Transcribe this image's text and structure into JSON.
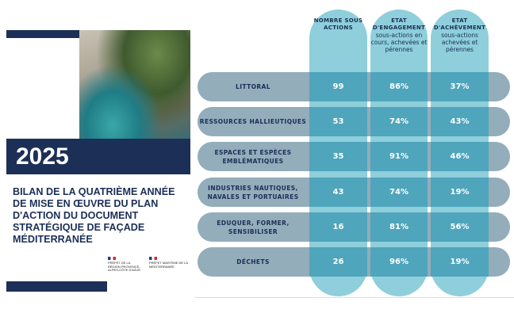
{
  "cover": {
    "year": "2025",
    "title": "BILAN DE LA QUATRIÈME ANNÉE DE MISE EN ŒUVRE DU PLAN D'ACTION DU DOCUMENT STRATÉGIQUE DE FAÇADE MÉDITERRANÉE",
    "logos": [
      {
        "text": "PRÉFET DE LA RÉGION PROVENCE-ALPES-CÔTE D'AZUR"
      },
      {
        "text": "PRÉFET MARITIME DE LA MÉDITERRANÉE"
      }
    ]
  },
  "columns": [
    {
      "title": "NOMBRE SOUS ACTIONS",
      "subtitle": ""
    },
    {
      "title": "ETAT D'ENGAGEMENT",
      "subtitle": "sous-actions en cours, achevées et pérennes"
    },
    {
      "title": "ETAT D'ACHÈVEMENT",
      "subtitle": "sous-actions achevées et pérennes"
    }
  ],
  "rows": [
    {
      "label": "LITTORAL",
      "count": "99",
      "engagement": "86%",
      "achevement": "37%"
    },
    {
      "label": "RESSOURCES HALLIEUTIQUES",
      "count": "53",
      "engagement": "74%",
      "achevement": "43%"
    },
    {
      "label": "ESPACES ET ESPÈCES EMBLÉMATIQUES",
      "count": "35",
      "engagement": "91%",
      "achevement": "46%"
    },
    {
      "label": "INDUSTRIES NAUTIQUES, NAVALES ET PORTUAIRES",
      "count": "43",
      "engagement": "74%",
      "achevement": "19%"
    },
    {
      "label": "EDUQUER, FORMER, SENSIBILISER",
      "count": "16",
      "engagement": "81%",
      "achevement": "56%"
    },
    {
      "label": "DÉCHETS",
      "count": "26",
      "engagement": "96%",
      "achevement": "19%"
    }
  ],
  "colors": {
    "navy": "#1c2f57",
    "column": "#8ecfdb",
    "cell": "#4fa5bb",
    "row": "#7898aa"
  }
}
